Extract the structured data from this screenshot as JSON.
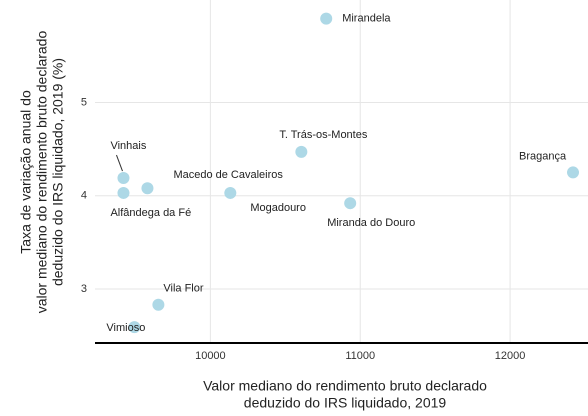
{
  "chart_data": {
    "type": "scatter",
    "x_label": [
      "Valor mediano do rendimento bruto declarado",
      "deduzido do IRS liquidado, 2019"
    ],
    "y_label": [
      "Taxa de variação anual do",
      "valor mediano do rendimento bruto declarado",
      "deduzido do IRS liquidado, 2019 (%)"
    ],
    "series": [
      {
        "name": null,
        "color": "#add8e6",
        "labels": [
          "Mirandela",
          "T. Trás-os-Montes",
          "Bragança",
          "Vinhais",
          "Alfândega da Fé",
          "Macedo de Cavaleiros",
          "Mogadouro",
          "Miranda do Douro",
          "Vila Flor",
          "Vimioso"
        ],
        "x": [
          10773,
          10607,
          12420,
          9420,
          9420,
          9580,
          10133,
          10933,
          9653,
          9493
        ],
        "values": [
          5.9,
          4.47,
          4.25,
          4.19,
          4.03,
          4.08,
          4.03,
          3.92,
          2.83,
          2.59
        ]
      }
    ],
    "xlim": [
      9230,
      12520
    ],
    "xticks": [
      10000,
      11000,
      12000
    ],
    "ylim": [
      2.42,
      6.1
    ],
    "yticks": [
      3,
      4,
      5
    ],
    "grid": true
  }
}
